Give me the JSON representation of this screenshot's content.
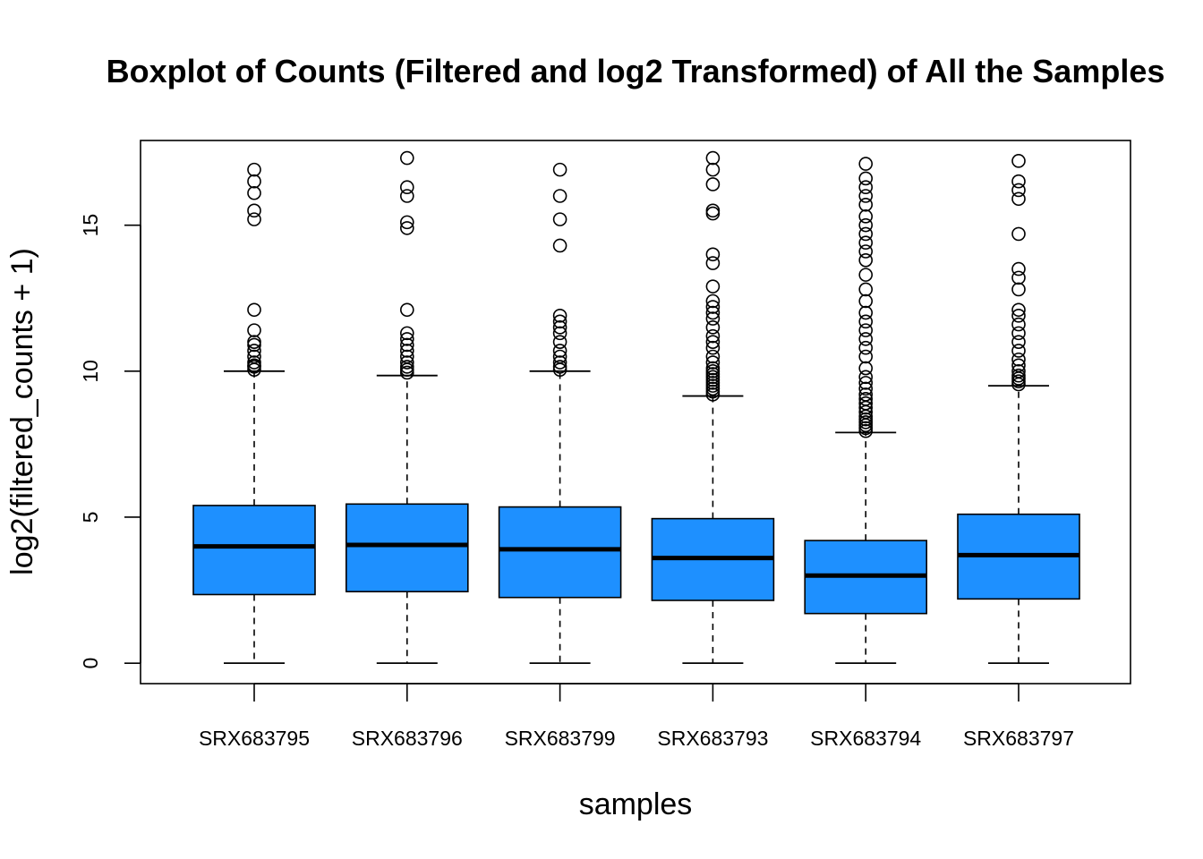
{
  "chart_data": {
    "type": "boxplot",
    "title": "Boxplot of Counts (Filtered and log2 Transformed) of All the Samples",
    "xlabel": "samples",
    "ylabel": "log2(filtered_counts + 1)",
    "ylim": [
      -0.7,
      17.9
    ],
    "yticks": [
      0,
      5,
      10,
      15
    ],
    "box_color": "#1E90FF",
    "grid": false,
    "legend": "none",
    "categories": [
      "SRX683795",
      "SRX683796",
      "SRX683799",
      "SRX683793",
      "SRX683794",
      "SRX683797"
    ],
    "series": [
      {
        "sample": "SRX683795",
        "whisker_low": 0,
        "q1": 2.35,
        "median": 4.0,
        "q3": 5.4,
        "whisker_high": 10.0,
        "outliers": [
          10.05,
          10.15,
          10.2,
          10.3,
          10.5,
          10.7,
          10.9,
          11.0,
          11.4,
          12.1,
          15.2,
          15.5,
          16.1,
          16.5,
          16.9
        ]
      },
      {
        "sample": "SRX683796",
        "whisker_low": 0,
        "q1": 2.45,
        "median": 4.05,
        "q3": 5.45,
        "whisker_high": 9.85,
        "outliers": [
          9.95,
          10.05,
          10.15,
          10.3,
          10.5,
          10.7,
          10.9,
          11.1,
          11.3,
          12.1,
          14.9,
          15.1,
          16.0,
          16.3,
          17.3
        ]
      },
      {
        "sample": "SRX683799",
        "whisker_low": 0,
        "q1": 2.25,
        "median": 3.9,
        "q3": 5.35,
        "whisker_high": 10.0,
        "outliers": [
          10.05,
          10.15,
          10.3,
          10.5,
          10.7,
          11.0,
          11.3,
          11.5,
          11.7,
          11.9,
          14.3,
          15.2,
          16.0,
          16.9
        ]
      },
      {
        "sample": "SRX683793",
        "whisker_low": 0,
        "q1": 2.15,
        "median": 3.6,
        "q3": 4.95,
        "whisker_high": 9.15,
        "outliers": [
          9.2,
          9.3,
          9.4,
          9.5,
          9.6,
          9.7,
          9.8,
          9.9,
          10.0,
          10.1,
          10.3,
          10.5,
          10.8,
          11.0,
          11.2,
          11.5,
          11.8,
          12.0,
          12.2,
          12.4,
          12.9,
          13.7,
          14.0,
          15.4,
          15.5,
          16.4,
          16.9,
          17.3
        ]
      },
      {
        "sample": "SRX683794",
        "whisker_low": 0,
        "q1": 1.7,
        "median": 3.0,
        "q3": 4.2,
        "whisker_high": 7.9,
        "outliers": [
          7.95,
          8.05,
          8.15,
          8.25,
          8.35,
          8.45,
          8.6,
          8.75,
          8.9,
          9.05,
          9.2,
          9.4,
          9.6,
          9.8,
          10.1,
          10.5,
          10.8,
          11.1,
          11.4,
          11.7,
          12.0,
          12.4,
          12.8,
          13.3,
          13.8,
          14.1,
          14.4,
          14.7,
          15.0,
          15.3,
          15.7,
          16.0,
          16.3,
          16.6,
          17.1
        ]
      },
      {
        "sample": "SRX683797",
        "whisker_low": 0,
        "q1": 2.2,
        "median": 3.7,
        "q3": 5.1,
        "whisker_high": 9.5,
        "outliers": [
          9.55,
          9.65,
          9.75,
          9.85,
          10.0,
          10.2,
          10.4,
          10.7,
          11.0,
          11.3,
          11.6,
          11.9,
          12.1,
          12.8,
          13.2,
          13.5,
          14.7,
          15.9,
          16.2,
          16.5,
          17.2
        ]
      }
    ]
  }
}
